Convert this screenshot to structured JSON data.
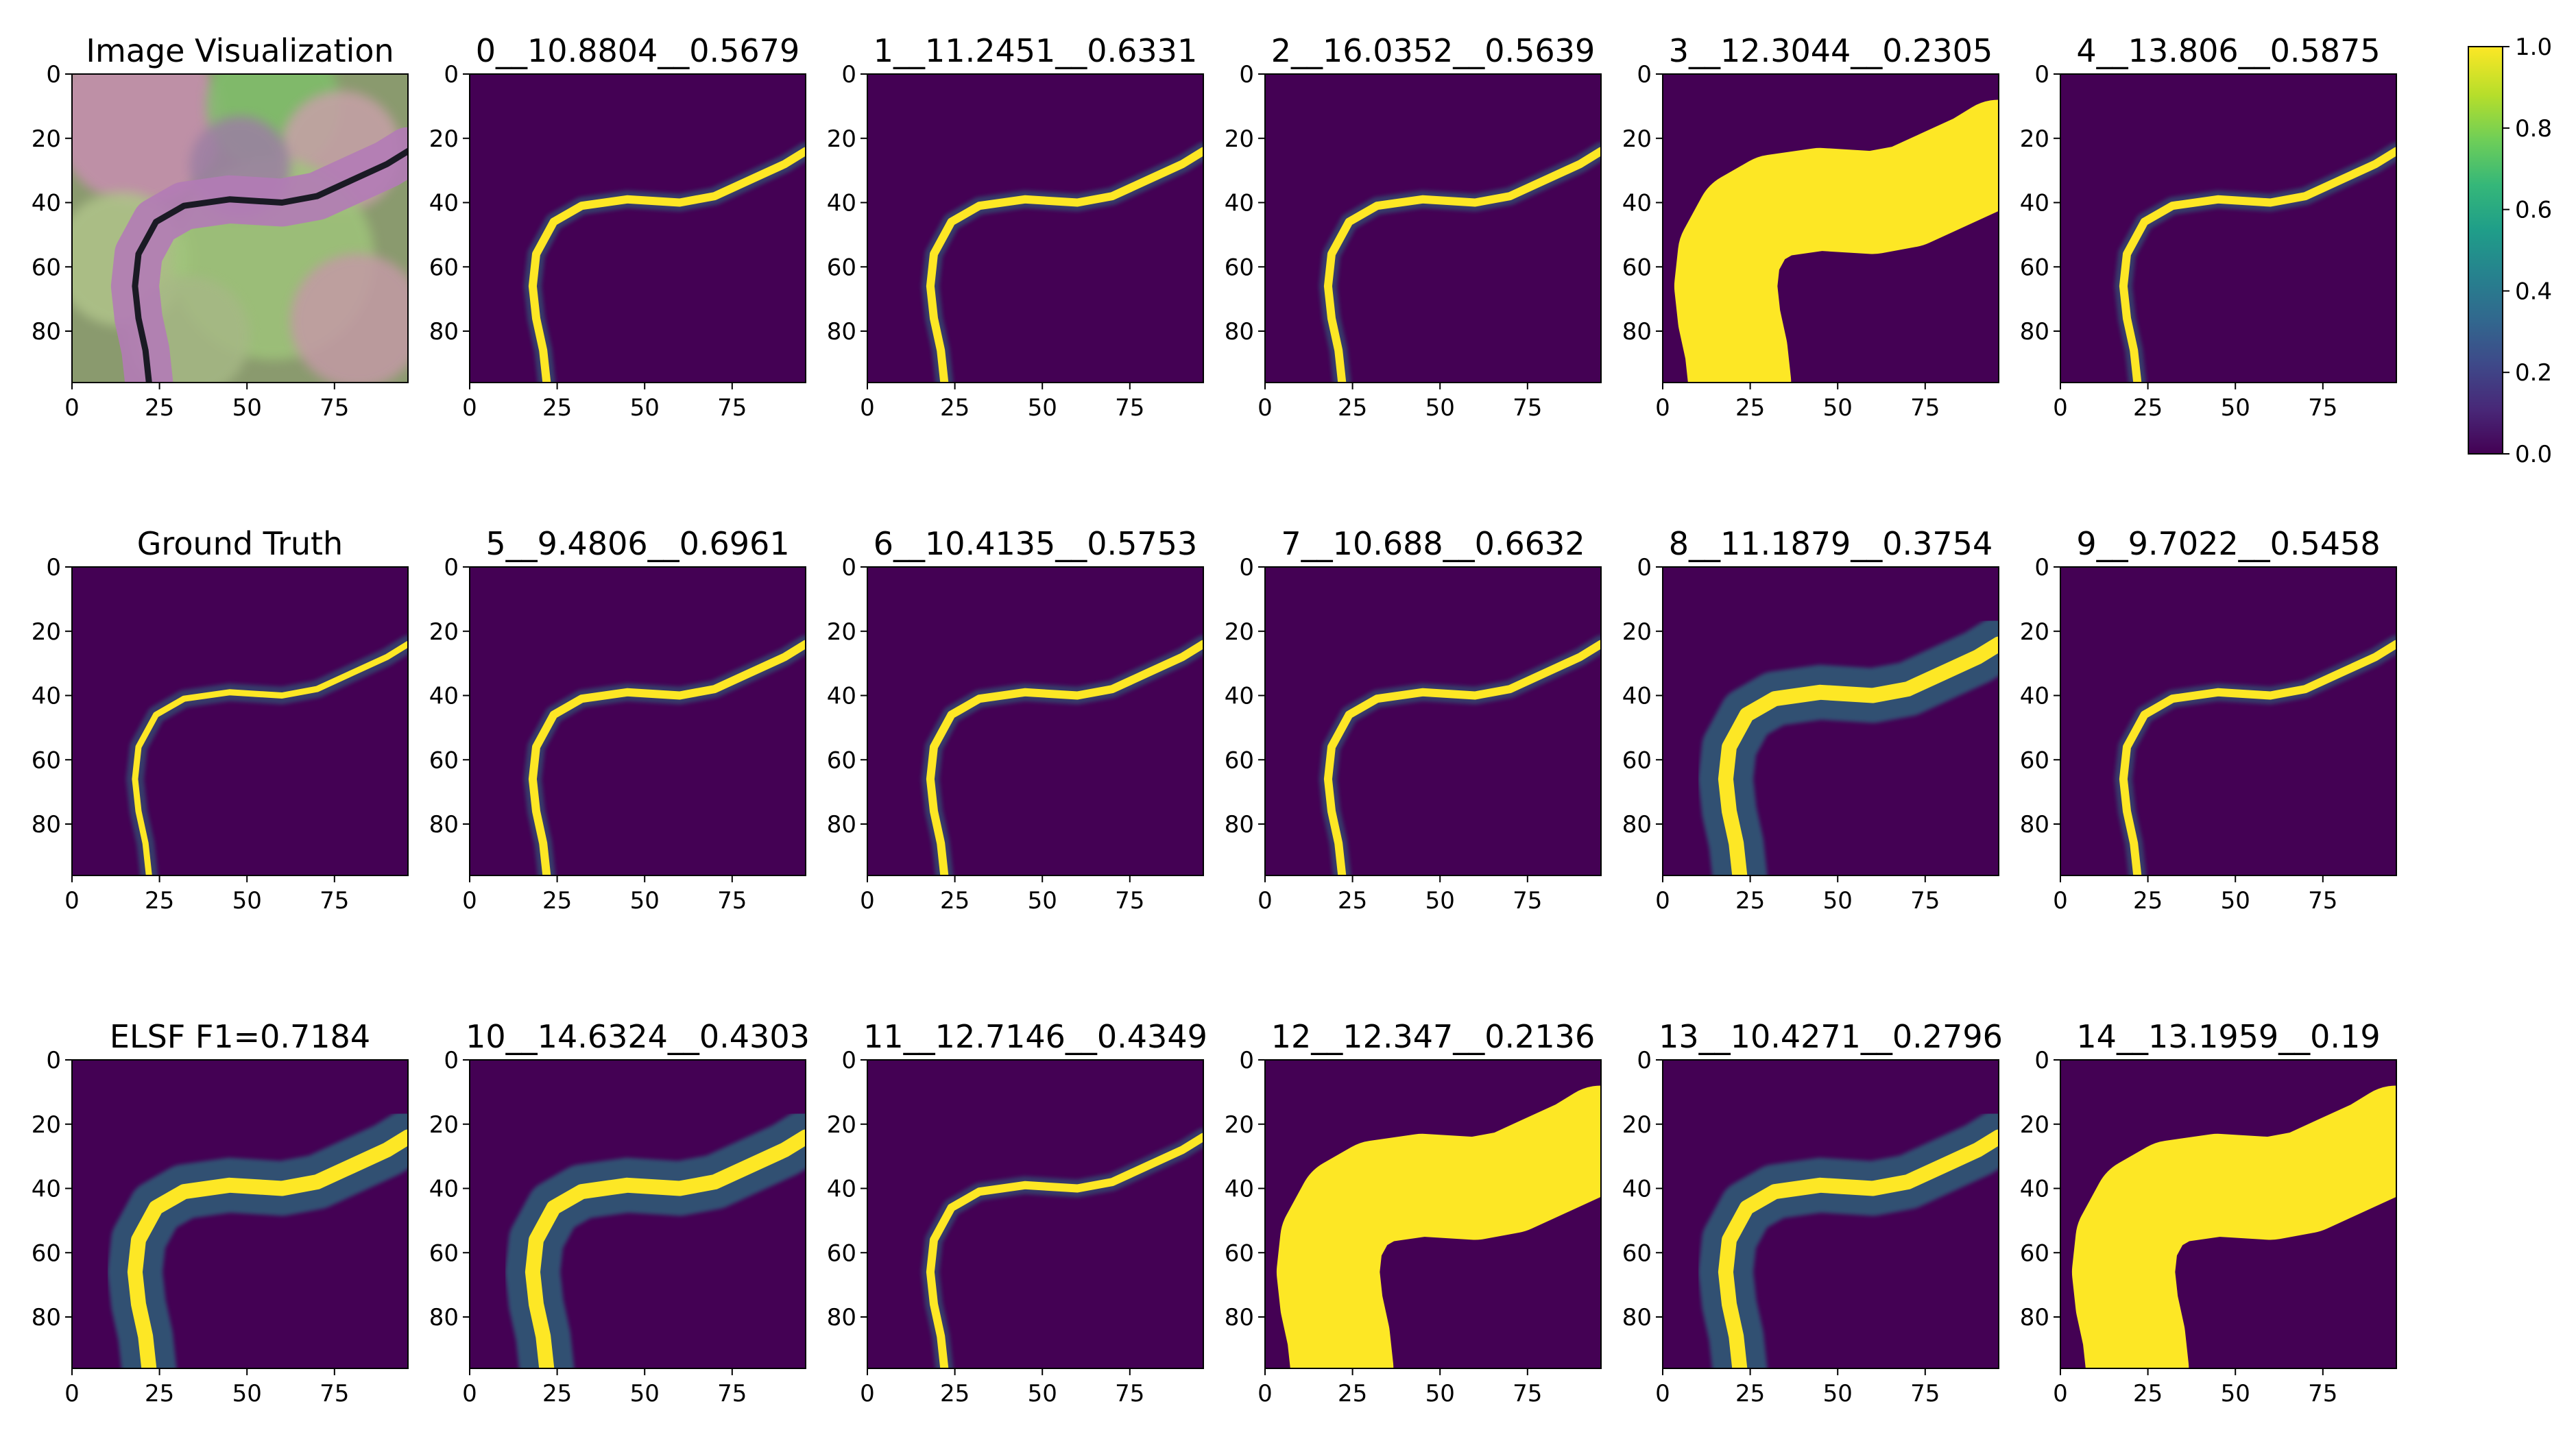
{
  "chart_data": {
    "type": "heatmap",
    "colormap": "viridis",
    "grid": false,
    "xlim": [
      0,
      96
    ],
    "ylim": [
      96,
      0
    ],
    "xticks": [
      "0",
      "25",
      "50",
      "75"
    ],
    "yticks": [
      "0",
      "20",
      "40",
      "60",
      "80"
    ],
    "colorbar": {
      "range": [
        0.0,
        1.0
      ],
      "ticks": [
        "0.0",
        "0.2",
        "0.4",
        "0.6",
        "0.8",
        "1.0"
      ],
      "placement": "right"
    },
    "panels": [
      {
        "title": "Image Visualization",
        "kind": "rgb",
        "extent": "none"
      },
      {
        "title": "0__10.8804__0.5679",
        "kind": "pred",
        "extent": "thin"
      },
      {
        "title": "1__11.2451__0.6331",
        "kind": "pred",
        "extent": "thin"
      },
      {
        "title": "2__16.0352__0.5639",
        "kind": "pred",
        "extent": "thin"
      },
      {
        "title": "3__12.3044__0.2305",
        "kind": "pred",
        "extent": "wide"
      },
      {
        "title": "4__13.806__0.5875",
        "kind": "pred",
        "extent": "thin"
      },
      {
        "title": "Ground Truth",
        "kind": "truth",
        "extent": "thin"
      },
      {
        "title": "5__9.4806__0.6961",
        "kind": "pred",
        "extent": "thin"
      },
      {
        "title": "6__10.4135__0.5753",
        "kind": "pred",
        "extent": "thin"
      },
      {
        "title": "7__10.688__0.6632",
        "kind": "pred",
        "extent": "thin"
      },
      {
        "title": "8__11.1879__0.3754",
        "kind": "pred",
        "extent": "medium"
      },
      {
        "title": "9__9.7022__0.5458",
        "kind": "pred",
        "extent": "thin"
      },
      {
        "title": "ELSF F1=0.7184",
        "kind": "ensemble",
        "extent": "medium"
      },
      {
        "title": "10__14.6324__0.4303",
        "kind": "pred",
        "extent": "medium"
      },
      {
        "title": "11__12.7146__0.4349",
        "kind": "pred",
        "extent": "thin"
      },
      {
        "title": "12__12.347__0.2136",
        "kind": "pred",
        "extent": "wide"
      },
      {
        "title": "13__10.4271__0.2796",
        "kind": "pred",
        "extent": "medium"
      },
      {
        "title": "14__13.1959__0.19",
        "kind": "pred",
        "extent": "wide"
      }
    ]
  },
  "colors": {
    "background_low": "#440154",
    "high": "#fde725",
    "mid": "#21918c",
    "viridis": [
      "#440154",
      "#482878",
      "#3e4989",
      "#31688e",
      "#26828e",
      "#1f9e89",
      "#35b779",
      "#6ece58",
      "#b5de2b",
      "#fde725"
    ]
  }
}
